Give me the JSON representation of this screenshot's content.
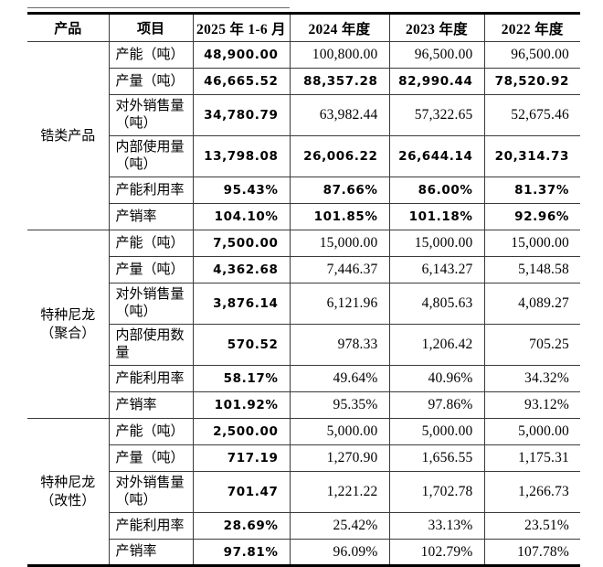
{
  "page": {
    "background": "#ffffff",
    "text_color": "#000000",
    "border_color": "#000000"
  },
  "table": {
    "columns": [
      "产品",
      "项目",
      "2025 年 1-6 月",
      "2024 年度",
      "2023 年度",
      "2022 年度"
    ],
    "groups": [
      {
        "product": "锆类产品",
        "rows": [
          {
            "label": "产能（吨）",
            "emphasis": "first",
            "values": [
              "48,900.00",
              "100,800.00",
              "96,500.00",
              "96,500.00"
            ]
          },
          {
            "label": "产量（吨）",
            "emphasis": "all",
            "values": [
              "46,665.52",
              "88,357.28",
              "82,990.44",
              "78,520.92"
            ]
          },
          {
            "label": "对外销售量\n（吨）",
            "emphasis": "first",
            "values": [
              "34,780.79",
              "63,982.44",
              "57,322.65",
              "52,675.46"
            ]
          },
          {
            "label": "内部使用量\n（吨）",
            "emphasis": "all",
            "values": [
              "13,798.08",
              "26,006.22",
              "26,644.14",
              "20,314.73"
            ]
          },
          {
            "label": "产能利用率",
            "emphasis": "all",
            "values": [
              "95.43%",
              "87.66%",
              "86.00%",
              "81.37%"
            ]
          },
          {
            "label": "产销率",
            "emphasis": "all",
            "values": [
              "104.10%",
              "101.85%",
              "101.18%",
              "92.96%"
            ]
          }
        ]
      },
      {
        "product": "特种尼龙\n（聚合）",
        "rows": [
          {
            "label": "产能（吨）",
            "emphasis": "first",
            "values": [
              "7,500.00",
              "15,000.00",
              "15,000.00",
              "15,000.00"
            ]
          },
          {
            "label": "产量（吨）",
            "emphasis": "first",
            "values": [
              "4,362.68",
              "7,446.37",
              "6,143.27",
              "5,148.58"
            ]
          },
          {
            "label": "对外销售量\n（吨）",
            "emphasis": "first",
            "values": [
              "3,876.14",
              "6,121.96",
              "4,805.63",
              "4,089.27"
            ]
          },
          {
            "label": "内部使用数\n量",
            "emphasis": "first",
            "values": [
              "570.52",
              "978.33",
              "1,206.42",
              "705.25"
            ]
          },
          {
            "label": "产能利用率",
            "emphasis": "first",
            "values": [
              "58.17%",
              "49.64%",
              "40.96%",
              "34.32%"
            ]
          },
          {
            "label": "产销率",
            "emphasis": "first",
            "values": [
              "101.92%",
              "95.35%",
              "97.86%",
              "93.12%"
            ]
          }
        ]
      },
      {
        "product": "特种尼龙\n（改性）",
        "rows": [
          {
            "label": "产能（吨）",
            "emphasis": "first",
            "values": [
              "2,500.00",
              "5,000.00",
              "5,000.00",
              "5,000.00"
            ]
          },
          {
            "label": "产量（吨）",
            "emphasis": "first",
            "values": [
              "717.19",
              "1,270.90",
              "1,656.55",
              "1,175.31"
            ]
          },
          {
            "label": "对外销售量\n（吨）",
            "emphasis": "first",
            "values": [
              "701.47",
              "1,221.22",
              "1,702.78",
              "1,266.73"
            ]
          },
          {
            "label": "产能利用率",
            "emphasis": "first",
            "values": [
              "28.69%",
              "25.42%",
              "33.13%",
              "23.51%"
            ]
          },
          {
            "label": "产销率",
            "emphasis": "first",
            "values": [
              "97.81%",
              "96.09%",
              "102.79%",
              "107.78%"
            ]
          }
        ]
      }
    ]
  }
}
